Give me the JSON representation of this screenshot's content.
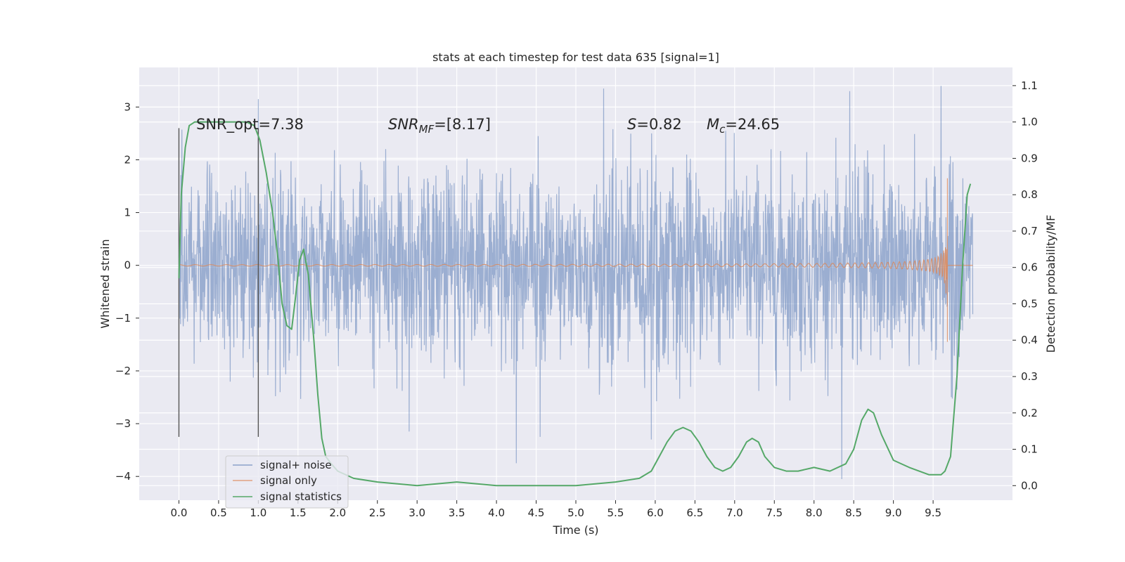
{
  "chart_data": {
    "type": "line",
    "title": "stats at each timestep for test data 635 [signal=1]",
    "xlabel": "Time (s)",
    "ylabel": "Whitened strain",
    "y2label": "Detection probability/MF",
    "xlim": [
      -0.5,
      10.5
    ],
    "ylim": [
      -4.45,
      3.75
    ],
    "y2lim": [
      -0.04,
      1.15
    ],
    "x_ticks": [
      0.0,
      0.5,
      1.0,
      1.5,
      2.0,
      2.5,
      3.0,
      3.5,
      4.0,
      4.5,
      5.0,
      5.5,
      6.0,
      6.5,
      7.0,
      7.5,
      8.0,
      8.5,
      9.0,
      9.5
    ],
    "x_tick_labels": [
      "0.0",
      "0.5",
      "1.0",
      "1.5",
      "2.0",
      "2.5",
      "3.0",
      "3.5",
      "4.0",
      "4.5",
      "5.0",
      "5.5",
      "6.0",
      "6.5",
      "7.0",
      "7.5",
      "8.0",
      "8.5",
      "9.0",
      "9.5"
    ],
    "y_ticks": [
      3,
      2,
      1,
      0,
      -1,
      -2,
      -3,
      -4
    ],
    "y_tick_labels": [
      "3",
      "2",
      "1",
      "0",
      "−1",
      "−2",
      "−3",
      "−4"
    ],
    "y2_ticks": [
      1.1,
      1.0,
      0.9,
      0.8,
      0.7,
      0.6,
      0.5,
      0.4,
      0.3,
      0.2,
      0.1,
      0.0
    ],
    "y2_tick_labels": [
      "1.1",
      "1.0",
      "0.9",
      "0.8",
      "0.7",
      "0.6",
      "0.5",
      "0.4",
      "0.3",
      "0.2",
      "0.1",
      "0.0"
    ],
    "grid": true,
    "legend_position": "lower-left",
    "colors": {
      "background": "#eaeaf2",
      "grid": "#ffffff",
      "noise": "#4c72b0",
      "signal": "#dd8452",
      "stat": "#55a868",
      "vline": "#555555"
    },
    "annotations": {
      "snr_opt": "SNR_opt=7.38",
      "snr_mf_label": "SNR",
      "snr_mf_sub": "MF",
      "snr_mf_value": "=[8.17]",
      "s_label": "S",
      "s_value": "=0.82",
      "mc_label": "M",
      "mc_sub": "c",
      "mc_value": "=24.65"
    },
    "vertical_lines": [
      {
        "x": 0.0,
        "y_range": [
          -3.25,
          2.6
        ]
      },
      {
        "x": 1.0,
        "y_range": [
          -3.25,
          2.6
        ]
      }
    ],
    "series": [
      {
        "name": "signal+ noise",
        "kind": "noise",
        "x_range": [
          0.0,
          10.0
        ],
        "typical_abs": 1.45,
        "extremes": [
          {
            "x": 1.0,
            "y": 3.15
          },
          {
            "x": 5.35,
            "y": 3.35
          },
          {
            "x": 8.45,
            "y": 3.3
          },
          {
            "x": 9.6,
            "y": 3.4
          },
          {
            "x": 4.25,
            "y": -3.75
          },
          {
            "x": 8.35,
            "y": -4.05
          },
          {
            "x": 5.95,
            "y": -3.3
          },
          {
            "x": 2.9,
            "y": -3.15
          },
          {
            "x": 4.55,
            "y": -3.25
          }
        ]
      },
      {
        "name": "signal only",
        "kind": "chirp",
        "x_range": [
          0.0,
          10.0
        ],
        "merger_x": 9.68,
        "peak_amplitude": 1.65,
        "min_amplitude": -1.45
      },
      {
        "name": "signal statistics",
        "kind": "line",
        "axis": "right",
        "x": [
          0.0,
          0.03,
          0.08,
          0.13,
          0.2,
          0.3,
          0.5,
          0.7,
          0.85,
          0.95,
          1.02,
          1.1,
          1.18,
          1.25,
          1.3,
          1.36,
          1.42,
          1.47,
          1.52,
          1.57,
          1.63,
          1.7,
          1.75,
          1.8,
          1.85,
          1.92,
          2.0,
          2.2,
          2.5,
          3.0,
          3.5,
          4.0,
          4.5,
          5.0,
          5.5,
          5.8,
          5.95,
          6.05,
          6.15,
          6.25,
          6.35,
          6.45,
          6.55,
          6.65,
          6.75,
          6.85,
          6.95,
          7.05,
          7.15,
          7.22,
          7.3,
          7.38,
          7.5,
          7.65,
          7.8,
          8.0,
          8.2,
          8.4,
          8.5,
          8.6,
          8.68,
          8.75,
          8.85,
          9.0,
          9.2,
          9.45,
          9.6,
          9.65,
          9.72,
          9.8,
          9.87,
          9.93,
          9.97
        ],
        "y": [
          0.57,
          0.8,
          0.93,
          0.99,
          1.0,
          1.0,
          1.0,
          1.0,
          1.0,
          0.99,
          0.95,
          0.86,
          0.75,
          0.62,
          0.5,
          0.44,
          0.43,
          0.52,
          0.62,
          0.65,
          0.58,
          0.4,
          0.25,
          0.13,
          0.08,
          0.06,
          0.04,
          0.02,
          0.01,
          0.0,
          0.01,
          0.0,
          0.0,
          0.0,
          0.01,
          0.02,
          0.04,
          0.08,
          0.12,
          0.15,
          0.16,
          0.15,
          0.12,
          0.08,
          0.05,
          0.04,
          0.05,
          0.08,
          0.12,
          0.13,
          0.12,
          0.08,
          0.05,
          0.04,
          0.04,
          0.05,
          0.04,
          0.06,
          0.1,
          0.18,
          0.21,
          0.2,
          0.14,
          0.07,
          0.05,
          0.03,
          0.03,
          0.04,
          0.08,
          0.3,
          0.6,
          0.8,
          0.83
        ]
      }
    ]
  }
}
